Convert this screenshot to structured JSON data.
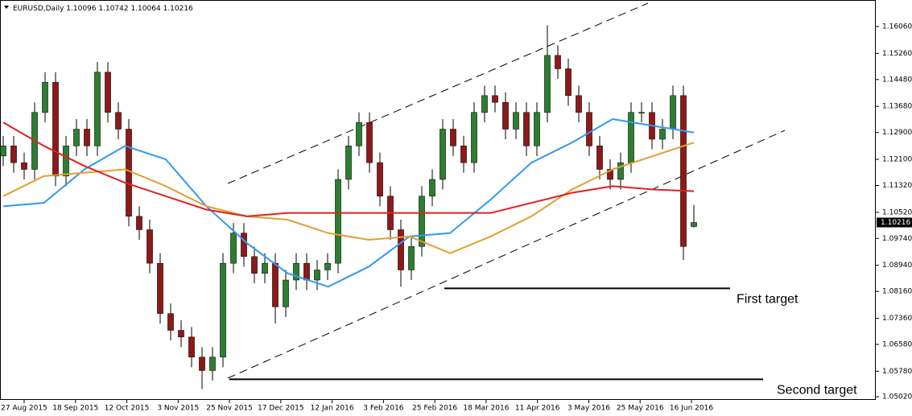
{
  "chart_data": {
    "type": "candlestick",
    "title": "EURUSD,Daily",
    "x_labels": [
      "27 Aug 2015",
      "18 Sep 2015",
      "12 Oct 2015",
      "3 Nov 2015",
      "25 Nov 2015",
      "17 Dec 2015",
      "12 Jan 2016",
      "3 Feb 2016",
      "25 Feb 2016",
      "18 Mar 2016",
      "11 Apr 2016",
      "3 May 2016",
      "25 May 2016",
      "16 Jun 2016"
    ],
    "open": [
      1.122,
      1.125,
      1.12,
      1.118,
      1.135,
      1.144,
      1.116,
      1.125,
      1.13,
      1.125,
      1.147,
      1.135,
      1.13,
      1.104,
      1.1,
      1.09,
      1.075,
      1.07,
      1.068,
      1.062,
      1.058,
      1.062,
      1.09,
      1.099,
      1.092,
      1.087,
      1.09,
      1.077,
      1.085,
      1.09,
      1.085,
      1.088,
      1.09,
      1.115,
      1.125,
      1.132,
      1.12,
      1.11,
      1.1,
      1.088,
      1.095,
      1.11,
      1.115,
      1.13,
      1.125,
      1.12,
      1.135,
      1.14,
      1.138,
      1.13,
      1.135,
      1.125,
      1.135,
      1.152,
      1.148,
      1.14,
      1.135,
      1.125,
      1.118,
      1.115,
      1.12,
      1.135,
      1.135,
      1.127,
      1.13,
      1.14,
      1.10096
    ],
    "high": [
      1.128,
      1.128,
      1.123,
      1.138,
      1.147,
      1.147,
      1.128,
      1.133,
      1.133,
      1.15,
      1.15,
      1.138,
      1.133,
      1.107,
      1.103,
      1.093,
      1.078,
      1.073,
      1.071,
      1.065,
      1.065,
      1.093,
      1.102,
      1.102,
      1.095,
      1.093,
      1.093,
      1.088,
      1.093,
      1.093,
      1.091,
      1.093,
      1.118,
      1.128,
      1.135,
      1.135,
      1.123,
      1.113,
      1.103,
      1.098,
      1.113,
      1.118,
      1.133,
      1.133,
      1.128,
      1.138,
      1.143,
      1.143,
      1.141,
      1.138,
      1.138,
      1.138,
      1.161,
      1.155,
      1.151,
      1.143,
      1.138,
      1.128,
      1.121,
      1.123,
      1.138,
      1.138,
      1.138,
      1.133,
      1.143,
      1.143,
      1.10742
    ],
    "low": [
      1.119,
      1.117,
      1.115,
      1.115,
      1.132,
      1.113,
      1.113,
      1.122,
      1.122,
      1.122,
      1.132,
      1.127,
      1.101,
      1.097,
      1.087,
      1.072,
      1.067,
      1.065,
      1.059,
      1.0525,
      1.055,
      1.059,
      1.087,
      1.089,
      1.084,
      1.084,
      1.072,
      1.074,
      1.082,
      1.082,
      1.082,
      1.085,
      1.087,
      1.112,
      1.122,
      1.117,
      1.107,
      1.097,
      1.083,
      1.085,
      1.092,
      1.107,
      1.112,
      1.122,
      1.117,
      1.117,
      1.132,
      1.135,
      1.127,
      1.127,
      1.122,
      1.122,
      1.132,
      1.145,
      1.137,
      1.132,
      1.122,
      1.115,
      1.112,
      1.112,
      1.117,
      1.132,
      1.124,
      1.124,
      1.127,
      1.091,
      1.10064
    ],
    "close": [
      1.125,
      1.12,
      1.118,
      1.135,
      1.144,
      1.116,
      1.125,
      1.13,
      1.125,
      1.147,
      1.135,
      1.13,
      1.104,
      1.1,
      1.09,
      1.075,
      1.07,
      1.068,
      1.062,
      1.058,
      1.062,
      1.09,
      1.099,
      1.092,
      1.087,
      1.09,
      1.077,
      1.085,
      1.09,
      1.085,
      1.088,
      1.09,
      1.115,
      1.125,
      1.132,
      1.12,
      1.11,
      1.1,
      1.088,
      1.095,
      1.11,
      1.115,
      1.13,
      1.125,
      1.12,
      1.135,
      1.14,
      1.138,
      1.13,
      1.135,
      1.125,
      1.135,
      1.152,
      1.148,
      1.14,
      1.135,
      1.125,
      1.118,
      1.115,
      1.12,
      1.135,
      1.135,
      1.127,
      1.13,
      1.14,
      1.095,
      1.10216
    ],
    "up_color": "#2e7d32",
    "down_color": "#8b1a1a",
    "series": [
      {
        "color": "#3399ee",
        "values": [
          1.107,
          1.108,
          1.118,
          1.125,
          1.121,
          1.107,
          1.096,
          1.087,
          1.083,
          1.089,
          1.098,
          1.099,
          1.109,
          1.12,
          1.126,
          1.133,
          1.131,
          1.129
        ]
      },
      {
        "color": "#e0a030",
        "values": [
          1.11,
          1.116,
          1.117,
          1.118,
          1.113,
          1.107,
          1.104,
          1.103,
          1.099,
          1.097,
          1.098,
          1.093,
          1.098,
          1.104,
          1.112,
          1.118,
          1.122,
          1.126
        ]
      },
      {
        "color": "#e02020",
        "values": [
          1.132,
          1.125,
          1.119,
          1.114,
          1.11,
          1.106,
          1.104,
          1.105,
          1.105,
          1.105,
          1.105,
          1.105,
          1.105,
          1.108,
          1.111,
          1.113,
          1.112,
          1.1115
        ]
      }
    ],
    "ylim": [
      1.04924,
      1.16852
    ],
    "yticks": [
      {
        "value": 1.1606,
        "label": "1.16060"
      },
      {
        "value": 1.1526,
        "label": "1.15260"
      },
      {
        "value": 1.1448,
        "label": "1.14480"
      },
      {
        "value": 1.1368,
        "label": "1.13680"
      },
      {
        "value": 1.129,
        "label": "1.12900"
      },
      {
        "value": 1.121,
        "label": "1.12100"
      },
      {
        "value": 1.1132,
        "label": "1.11320"
      },
      {
        "value": 1.1052,
        "label": "1.10520"
      },
      {
        "value": 1.0974,
        "label": "1.09740"
      },
      {
        "value": 1.0894,
        "label": "1.08940"
      },
      {
        "value": 1.0816,
        "label": "1.08160"
      },
      {
        "value": 1.0736,
        "label": "1.07360"
      },
      {
        "value": 1.0658,
        "label": "1.06580"
      },
      {
        "value": 1.0578,
        "label": "1.05780"
      },
      {
        "value": 1.0502,
        "label": "1.05020"
      }
    ],
    "annotations": [
      {
        "text": "First target",
        "value": 1.0825
      },
      {
        "text": "Second target",
        "value": 1.0554
      }
    ]
  }
}
